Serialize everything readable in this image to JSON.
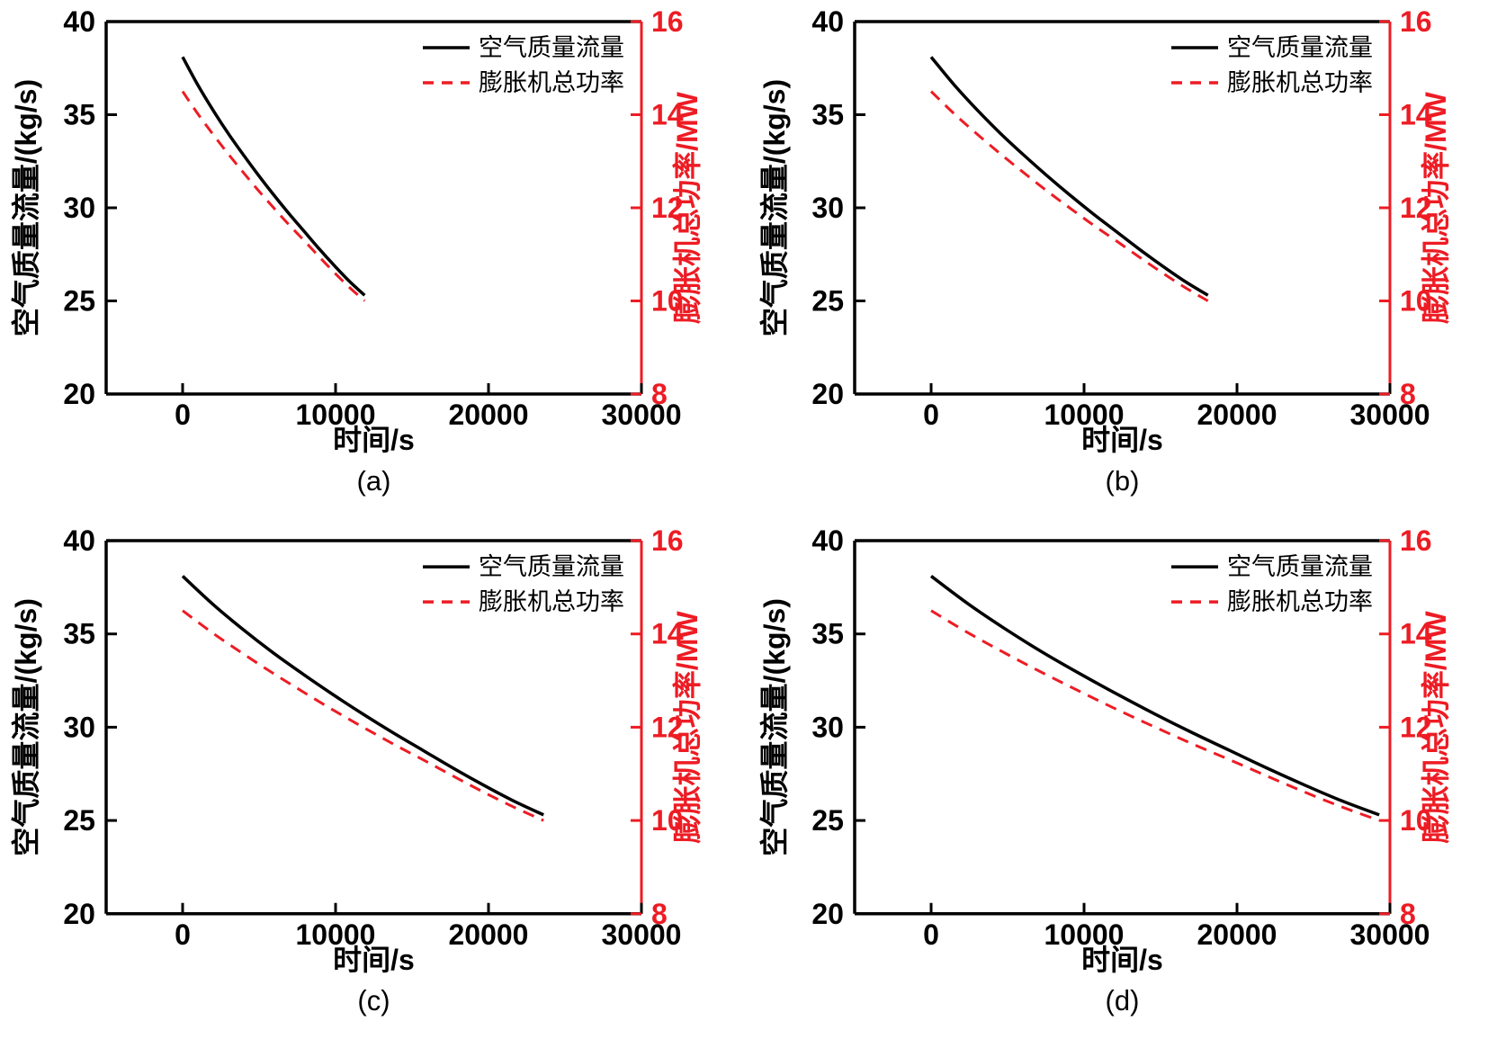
{
  "figure": {
    "background": "#ffffff",
    "colors": {
      "flow": "#000000",
      "power": "#ed1c24",
      "text": "#000000"
    },
    "legend": {
      "position": "upper right",
      "entries": [
        {
          "label": "空气质量流量",
          "style": "solid",
          "color": "#000000"
        },
        {
          "label": "膨胀机总功率",
          "style": "dashed",
          "color": "#ed1c24"
        }
      ]
    },
    "axes": {
      "x_label": "时间/s",
      "y_left_label": "空气质量流量/(kg/s)",
      "y_right_label": "膨胀机总功率/MW",
      "x_ticks": [
        0,
        10000,
        20000,
        30000
      ],
      "y_left_ticks": [
        20,
        25,
        30,
        35,
        40
      ],
      "y_right_ticks": [
        8,
        10,
        12,
        14,
        16
      ],
      "x_range": [
        -5000,
        30000
      ],
      "y_left_range": [
        20,
        40
      ],
      "y_right_range": [
        8,
        16
      ],
      "grid": false
    }
  },
  "chart_data": [
    {
      "panel": "(a)",
      "type": "line",
      "xlabel": "时间/s",
      "ylabel_left": "空气质量流量/(kg/s)",
      "ylabel_right": "膨胀机总功率/MW",
      "xlim": [
        -5000,
        30000
      ],
      "ylim_left": [
        20,
        40
      ],
      "ylim_right": [
        8,
        16
      ],
      "legend_position": "upper right",
      "series": [
        {
          "name": "空气质量流量",
          "axis": "left",
          "style": "solid",
          "color": "#000000",
          "x": [
            0,
            992,
            1983,
            2975,
            3967,
            4958,
            5950,
            6942,
            7933,
            8925,
            9917,
            10908,
            11900
          ],
          "y": [
            38.1,
            36.6,
            35.25,
            34.0,
            32.85,
            31.75,
            30.7,
            29.7,
            28.75,
            27.8,
            26.9,
            26.05,
            25.3
          ]
        },
        {
          "name": "膨胀机总功率",
          "axis": "right",
          "style": "dashed",
          "color": "#ed1c24",
          "x": [
            0,
            992,
            1983,
            2975,
            3967,
            4958,
            5950,
            6942,
            7933,
            8925,
            9917,
            10908,
            11900
          ],
          "y": [
            14.5,
            14.02,
            13.58,
            13.16,
            12.76,
            12.37,
            12.0,
            11.64,
            11.3,
            10.95,
            10.61,
            10.29,
            10.0
          ]
        }
      ]
    },
    {
      "panel": "(b)",
      "type": "line",
      "xlabel": "时间/s",
      "ylabel_left": "空气质量流量/(kg/s)",
      "ylabel_right": "膨胀机总功率/MW",
      "xlim": [
        -5000,
        30000
      ],
      "ylim_left": [
        20,
        40
      ],
      "ylim_right": [
        8,
        16
      ],
      "legend_position": "upper right",
      "series": [
        {
          "name": "空气质量流量",
          "axis": "left",
          "style": "solid",
          "color": "#000000",
          "x": [
            0,
            1508,
            3017,
            4525,
            6033,
            7542,
            9050,
            10558,
            12067,
            13575,
            15083,
            16592,
            18100
          ],
          "y": [
            38.1,
            36.6,
            35.25,
            34.0,
            32.85,
            31.75,
            30.7,
            29.7,
            28.75,
            27.8,
            26.9,
            26.05,
            25.3
          ]
        },
        {
          "name": "膨胀机总功率",
          "axis": "right",
          "style": "dashed",
          "color": "#ed1c24",
          "x": [
            0,
            1508,
            3017,
            4525,
            6033,
            7542,
            9050,
            10558,
            12067,
            13575,
            15083,
            16592,
            18100
          ],
          "y": [
            14.5,
            14.02,
            13.58,
            13.16,
            12.76,
            12.37,
            12.0,
            11.64,
            11.3,
            10.95,
            10.61,
            10.29,
            10.0
          ]
        }
      ]
    },
    {
      "panel": "(c)",
      "type": "line",
      "xlabel": "时间/s",
      "ylabel_left": "空气质量流量/(kg/s)",
      "ylabel_right": "膨胀机总功率/MW",
      "xlim": [
        -5000,
        30000
      ],
      "ylim_left": [
        20,
        40
      ],
      "ylim_right": [
        8,
        16
      ],
      "legend_position": "upper right",
      "series": [
        {
          "name": "空气质量流量",
          "axis": "left",
          "style": "solid",
          "color": "#000000",
          "x": [
            0,
            1967,
            3933,
            5900,
            7867,
            9833,
            11800,
            13767,
            15733,
            17700,
            19667,
            21633,
            23600
          ],
          "y": [
            38.1,
            36.6,
            35.25,
            34.0,
            32.85,
            31.75,
            30.7,
            29.7,
            28.75,
            27.8,
            26.9,
            26.05,
            25.3
          ]
        },
        {
          "name": "膨胀机总功率",
          "axis": "right",
          "style": "dashed",
          "color": "#ed1c24",
          "x": [
            0,
            1967,
            3933,
            5900,
            7867,
            9833,
            11800,
            13767,
            15733,
            17700,
            19667,
            21633,
            23600
          ],
          "y": [
            14.5,
            14.02,
            13.58,
            13.16,
            12.76,
            12.37,
            12.0,
            11.64,
            11.3,
            10.95,
            10.61,
            10.29,
            10.0
          ]
        }
      ]
    },
    {
      "panel": "(d)",
      "type": "line",
      "xlabel": "时间/s",
      "ylabel_left": "空气质量流量/(kg/s)",
      "ylabel_right": "膨胀机总功率/MW",
      "xlim": [
        -5000,
        30000
      ],
      "ylim_left": [
        20,
        40
      ],
      "ylim_right": [
        8,
        16
      ],
      "legend_position": "upper right",
      "series": [
        {
          "name": "空气质量流量",
          "axis": "left",
          "style": "solid",
          "color": "#000000",
          "x": [
            0,
            2442,
            4883,
            7325,
            9767,
            12208,
            14650,
            17092,
            19533,
            21975,
            24417,
            26858,
            29300
          ],
          "y": [
            38.1,
            36.6,
            35.25,
            34.0,
            32.85,
            31.75,
            30.7,
            29.7,
            28.75,
            27.8,
            26.9,
            26.05,
            25.3
          ]
        },
        {
          "name": "膨胀机总功率",
          "axis": "right",
          "style": "dashed",
          "color": "#ed1c24",
          "x": [
            0,
            2442,
            4883,
            7325,
            9767,
            12208,
            14650,
            17092,
            19533,
            21975,
            24417,
            26858,
            29300
          ],
          "y": [
            14.5,
            14.02,
            13.58,
            13.16,
            12.76,
            12.37,
            12.0,
            11.64,
            11.3,
            10.95,
            10.61,
            10.29,
            10.0
          ]
        }
      ]
    }
  ]
}
